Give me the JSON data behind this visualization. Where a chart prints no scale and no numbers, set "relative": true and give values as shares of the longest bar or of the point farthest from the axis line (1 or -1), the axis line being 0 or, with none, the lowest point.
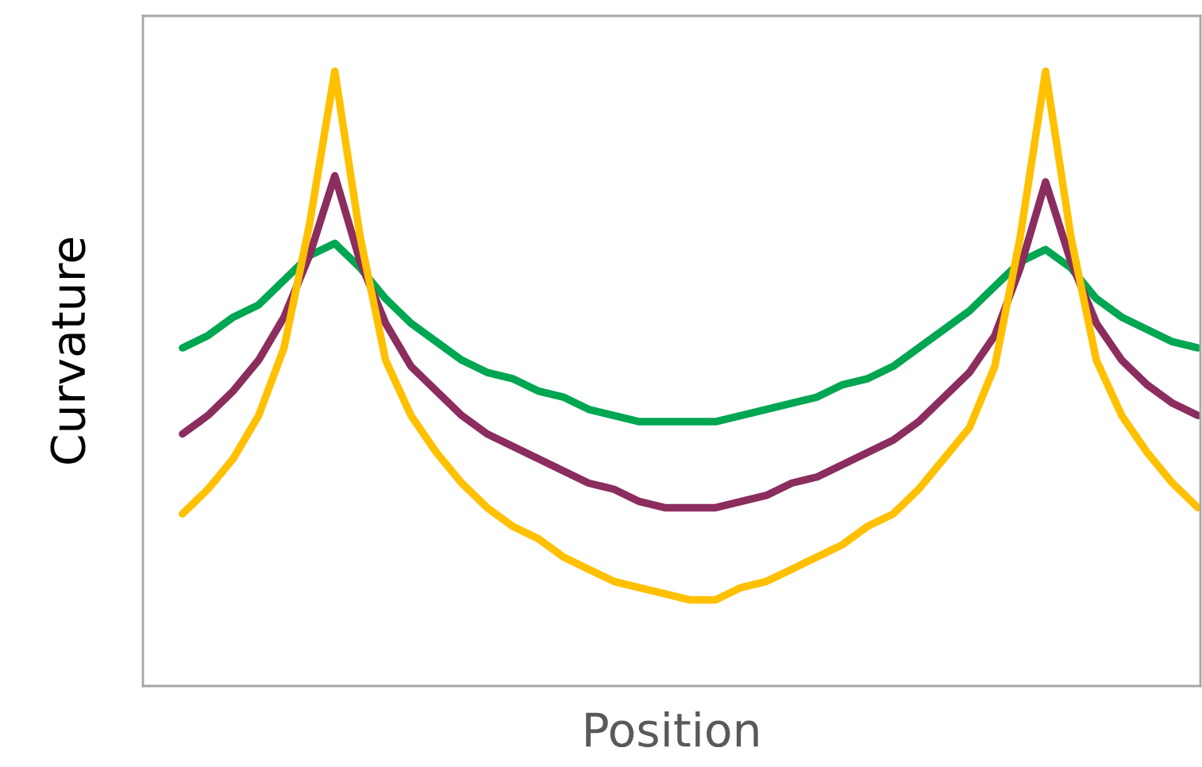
{
  "chart_data": {
    "type": "line",
    "xlabel": "Position",
    "ylabel": "Curvature",
    "relative": true,
    "grid": false,
    "legend": false,
    "marker": "none",
    "line_style": "solid",
    "categories": [
      null,
      null,
      null,
      null,
      null,
      null,
      null,
      null,
      null,
      null,
      null,
      null,
      null,
      null,
      null,
      null,
      null,
      null,
      null,
      null,
      null,
      null,
      null,
      null,
      null,
      null,
      null,
      null,
      null,
      null,
      null,
      null,
      null,
      null,
      null,
      null,
      null,
      null,
      null,
      null,
      null
    ],
    "series": [
      {
        "color": "#00a651",
        "values": [
          0.55,
          0.57,
          0.6,
          0.62,
          0.66,
          0.7,
          0.72,
          0.68,
          0.63,
          0.59,
          0.56,
          0.53,
          0.51,
          0.5,
          0.48,
          0.47,
          0.45,
          0.44,
          0.43,
          0.43,
          0.43,
          0.43,
          0.44,
          0.45,
          0.46,
          0.47,
          0.49,
          0.5,
          0.52,
          0.55,
          0.58,
          0.61,
          0.65,
          0.69,
          0.71,
          0.68,
          0.63,
          0.6,
          0.58,
          0.56,
          0.55
        ]
      },
      {
        "color": "#8b2d5e",
        "values": [
          0.41,
          0.44,
          0.48,
          0.53,
          0.6,
          0.7,
          0.83,
          0.69,
          0.59,
          0.52,
          0.48,
          0.44,
          0.41,
          0.39,
          0.37,
          0.35,
          0.33,
          0.32,
          0.3,
          0.29,
          0.29,
          0.29,
          0.3,
          0.31,
          0.33,
          0.34,
          0.36,
          0.38,
          0.4,
          0.43,
          0.47,
          0.51,
          0.57,
          0.68,
          0.82,
          0.69,
          0.59,
          0.53,
          0.49,
          0.46,
          0.44
        ]
      },
      {
        "color": "#ffc000",
        "values": [
          0.28,
          0.32,
          0.37,
          0.44,
          0.55,
          0.75,
          1,
          0.73,
          0.53,
          0.44,
          0.38,
          0.33,
          0.29,
          0.26,
          0.24,
          0.21,
          0.19,
          0.17,
          0.16,
          0.15,
          0.14,
          0.14,
          0.16,
          0.17,
          0.19,
          0.21,
          0.23,
          0.26,
          0.28,
          0.32,
          0.37,
          0.42,
          0.52,
          0.73,
          1,
          0.73,
          0.53,
          0.44,
          0.38,
          0.33,
          0.29
        ]
      }
    ]
  }
}
